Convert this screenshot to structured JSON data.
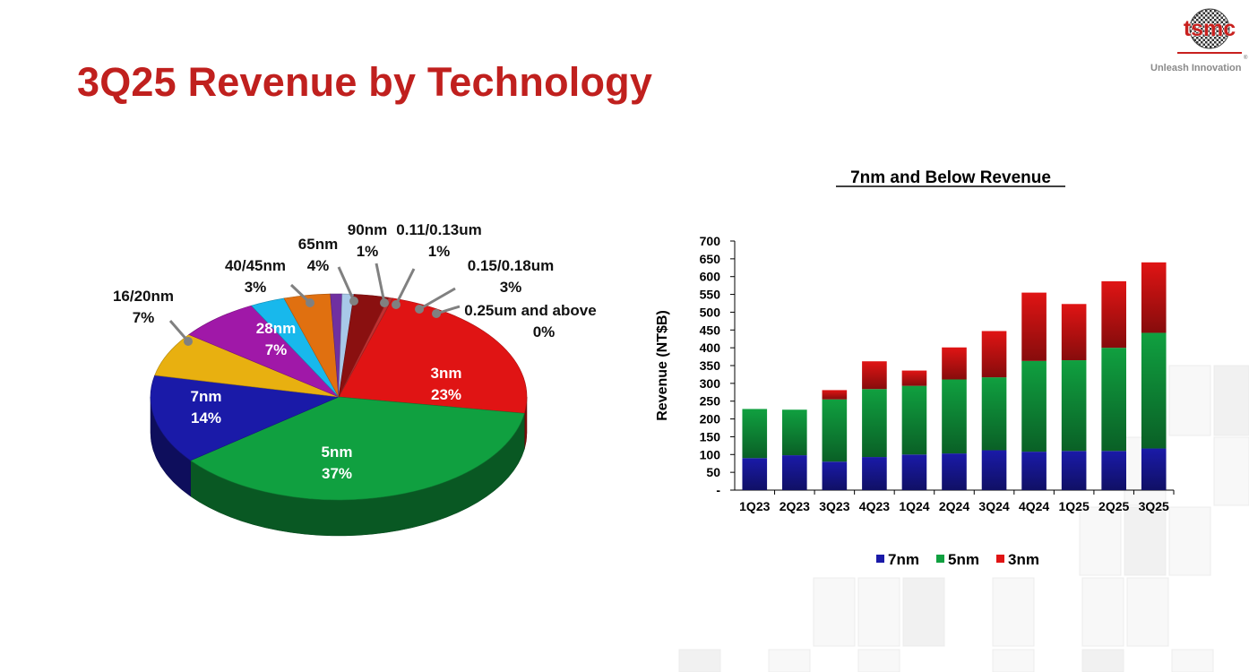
{
  "page": {
    "title": "3Q25 Revenue by Technology",
    "logo": {
      "wordmark": "tsmc",
      "registered": "®",
      "tagline": "Unleash Innovation"
    }
  },
  "chart_data": [
    {
      "type": "pie",
      "slices": [
        {
          "label": "3nm",
          "pct_text": "23%",
          "value": 23,
          "color": "#e01414"
        },
        {
          "label": "5nm",
          "pct_text": "37%",
          "value": 37,
          "color": "#10a040"
        },
        {
          "label": "7nm",
          "pct_text": "14%",
          "value": 14,
          "color": "#1a1aa8"
        },
        {
          "label": "16/20nm",
          "pct_text": "7%",
          "value": 7,
          "color": "#e8b010"
        },
        {
          "label": "28nm",
          "pct_text": "7%",
          "value": 7,
          "color": "#a018a8"
        },
        {
          "label": "40/45nm",
          "pct_text": "3%",
          "value": 3,
          "color": "#18b8ec"
        },
        {
          "label": "65nm",
          "pct_text": "4%",
          "value": 4,
          "color": "#e07010"
        },
        {
          "label": "90nm",
          "pct_text": "1%",
          "value": 1,
          "color": "#7030a0"
        },
        {
          "label": "0.11/0.13um",
          "pct_text": "1%",
          "value": 1,
          "color": "#a8c8e8"
        },
        {
          "label": "0.15/0.18um",
          "pct_text": "3%",
          "value": 3,
          "color": "#8a1010"
        },
        {
          "label": "0.25um and above",
          "pct_text": "0%",
          "value": 0,
          "color": "#c03030"
        }
      ]
    },
    {
      "type": "bar",
      "stacked": true,
      "title": "7nm and Below Revenue",
      "ylabel": "Revenue (NT$B)",
      "ylim": [
        0,
        700
      ],
      "yticks": [
        "-",
        "50",
        "100",
        "150",
        "200",
        "250",
        "300",
        "350",
        "400",
        "450",
        "500",
        "550",
        "600",
        "650",
        "700"
      ],
      "categories": [
        "1Q23",
        "2Q23",
        "3Q23",
        "4Q23",
        "1Q24",
        "2Q24",
        "3Q24",
        "4Q24",
        "1Q25",
        "2Q25",
        "3Q25"
      ],
      "series": [
        {
          "name": "7nm",
          "color": "#1a1aa8",
          "values": [
            90,
            98,
            80,
            93,
            100,
            103,
            112,
            108,
            110,
            110,
            117
          ]
        },
        {
          "name": "5nm",
          "color": "#10a040",
          "values": [
            138,
            128,
            175,
            191,
            193,
            208,
            205,
            255,
            255,
            290,
            325
          ]
        },
        {
          "name": "3nm",
          "color": "#e01414",
          "values": [
            0,
            0,
            26,
            78,
            43,
            90,
            130,
            192,
            158,
            187,
            198
          ]
        }
      ],
      "legend_position": "bottom"
    }
  ]
}
